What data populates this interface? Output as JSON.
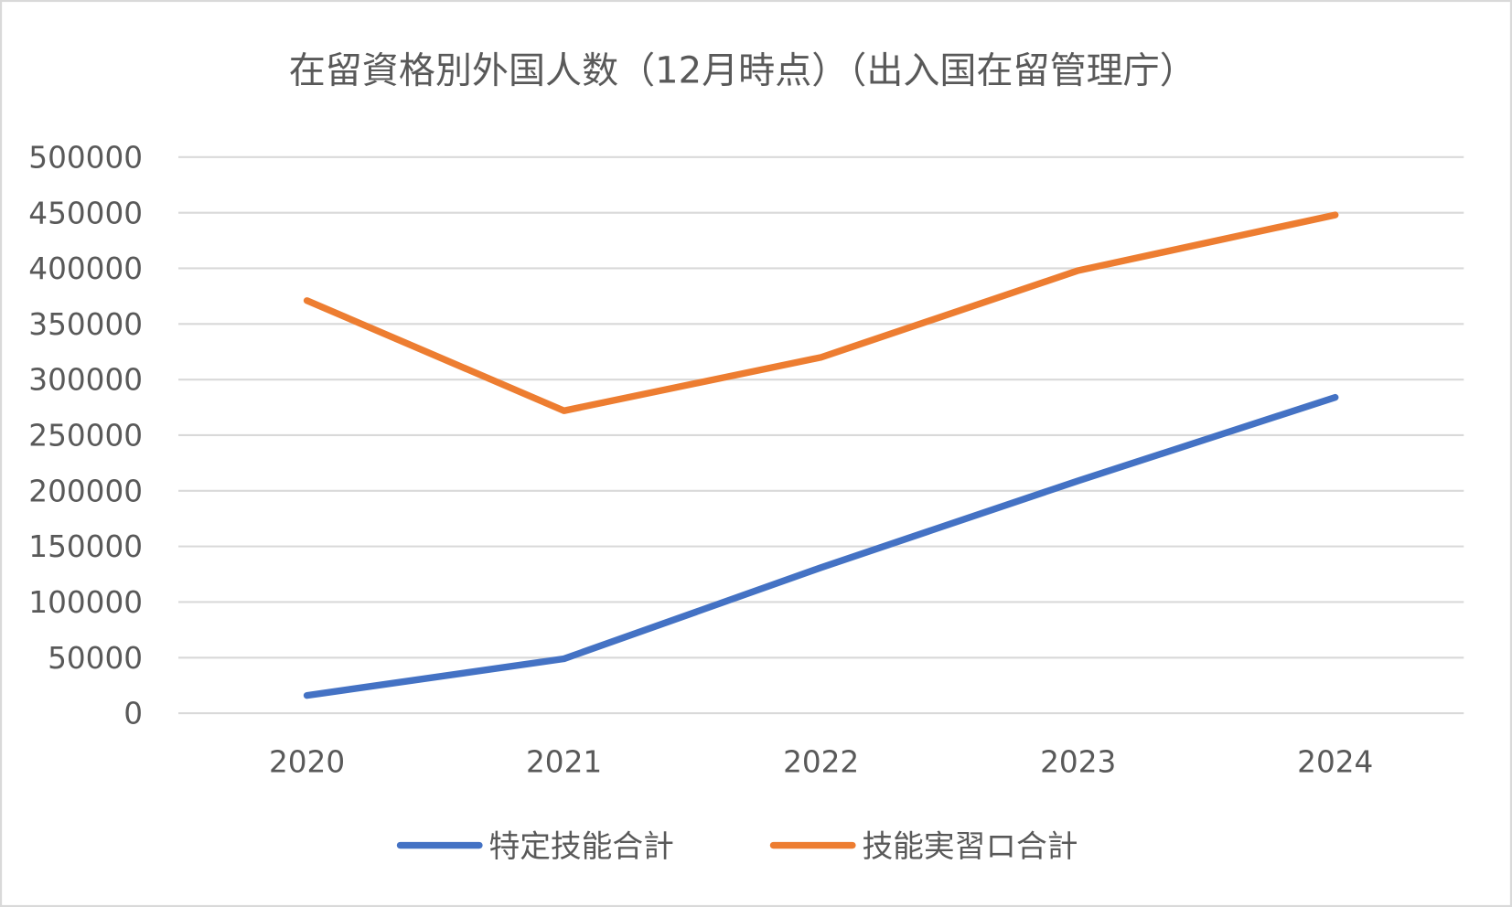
{
  "chart_data": {
    "type": "line",
    "title": "在留資格別外国人数（12月時点）（出入国在留管理庁）",
    "xlabel": "",
    "ylabel": "",
    "categories": [
      "2020",
      "2021",
      "2022",
      "2023",
      "2024"
    ],
    "ylim": [
      0,
      500000
    ],
    "yticks": [
      "0",
      "50000",
      "100000",
      "150000",
      "200000",
      "250000",
      "300000",
      "350000",
      "400000",
      "450000",
      "500000"
    ],
    "grid": true,
    "legend_position": "bottom",
    "series": [
      {
        "name": "特定技能合計",
        "color": "#4472C4",
        "values": [
          16000,
          49000,
          131000,
          209000,
          284000
        ]
      },
      {
        "name": "技能実習ロ合計",
        "color": "#ED7D31",
        "values": [
          371000,
          272000,
          320000,
          398000,
          448000
        ]
      }
    ]
  }
}
